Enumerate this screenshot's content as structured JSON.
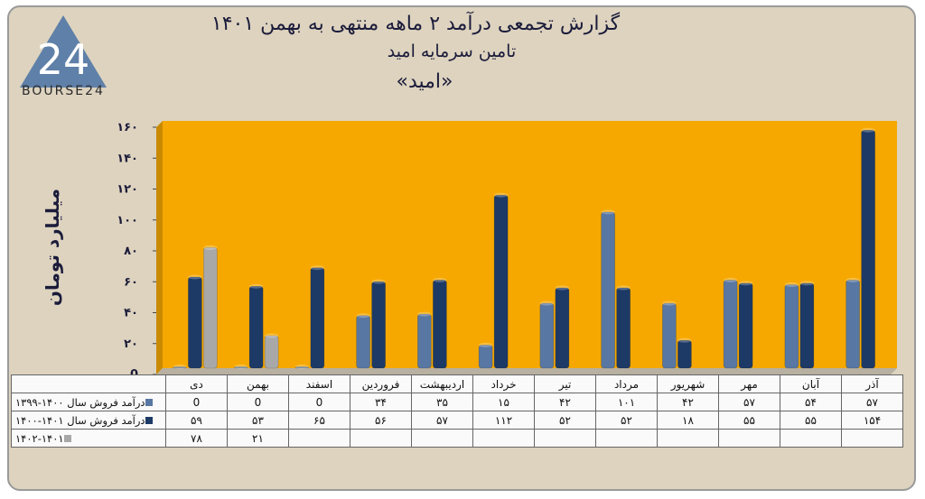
{
  "header": {
    "title": "گزارش تجمعی درآمد ۲ ماهه منتهی به بهمن ۱۴۰۱",
    "subtitle": "تامین سرمایه امید",
    "ticker": "«امید»"
  },
  "logo": {
    "text": "BOURSE24",
    "mark": "24"
  },
  "colors": {
    "background": "#ddd3bf",
    "plot_background": "#f6a800",
    "series_1399_1400": "#5877a2",
    "series_1400_1401": "#1d3a66",
    "series_1401_1402": "#a8a8a8"
  },
  "chart_data": {
    "type": "bar",
    "title": "گزارش تجمعی درآمد ۲ ماهه منتهی به بهمن ۱۴۰۱",
    "ylabel": "میلیارد تومان",
    "ylim": [
      0,
      160
    ],
    "yticks": [
      "0",
      "۲۰",
      "۴۰",
      "۶۰",
      "۸۰",
      "۱۰۰",
      "۱۲۰",
      "۱۴۰",
      "۱۶۰"
    ],
    "categories": [
      "دی",
      "بهمن",
      "اسفند",
      "فروردین",
      "اردیبهشت",
      "خرداد",
      "تیر",
      "مرداد",
      "شهریور",
      "مهر",
      "آبان",
      "آذر"
    ],
    "series": [
      {
        "name": "درآمد فروش سال ۱۴۰۰-۱۳۹۹",
        "values": [
          0,
          0,
          0,
          34,
          35,
          15,
          42,
          101,
          42,
          57,
          54,
          57
        ],
        "labels": [
          "0",
          "0",
          "0",
          "۳۴",
          "۳۵",
          "۱۵",
          "۴۲",
          "۱۰۱",
          "۴۲",
          "۵۷",
          "۵۴",
          "۵۷"
        ]
      },
      {
        "name": "درآمد فروش سال ۱۴۰۱-۱۴۰۰",
        "values": [
          59,
          53,
          65,
          56,
          57,
          112,
          52,
          52,
          18,
          55,
          55,
          154
        ],
        "labels": [
          "۵۹",
          "۵۳",
          "۶۵",
          "۵۶",
          "۵۷",
          "۱۱۲",
          "۵۲",
          "۵۲",
          "۱۸",
          "۵۵",
          "۵۵",
          "۱۵۴"
        ]
      },
      {
        "name": "۱۴۰۲-۱۴۰۱",
        "values": [
          78,
          21,
          null,
          null,
          null,
          null,
          null,
          null,
          null,
          null,
          null,
          null
        ],
        "labels": [
          "۷۸",
          "۲۱",
          "",
          "",
          "",
          "",
          "",
          "",
          "",
          "",
          "",
          ""
        ]
      }
    ],
    "grid": false,
    "legend": "data-table"
  }
}
